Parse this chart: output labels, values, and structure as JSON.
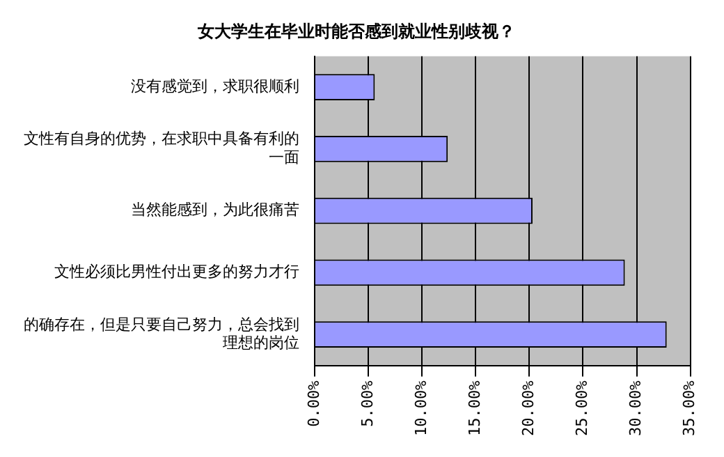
{
  "chart_data": {
    "type": "bar",
    "orientation": "horizontal",
    "title": "女大学生在毕业时能否感到就业性别歧视？",
    "categories": [
      "没有感觉到，求职很顺利",
      "文性有自身的优势，在求职中具备有利的一面",
      "当然能感到，为此很痛苦",
      "文性必须比男性付出更多的努力才行",
      "的确存在，但是只要自己努力，总会找到理想的岗位"
    ],
    "values": [
      5.6,
      12.4,
      20.3,
      28.9,
      32.8
    ],
    "color": "#9999ff",
    "xlim": [
      0,
      35
    ],
    "xticks": [
      {
        "value": 0,
        "label": "0.00%"
      },
      {
        "value": 5,
        "label": "5.00%"
      },
      {
        "value": 10,
        "label": "10.00%"
      },
      {
        "value": 15,
        "label": "15.00%"
      },
      {
        "value": 20,
        "label": "20.00%"
      },
      {
        "value": 25,
        "label": "25.00%"
      },
      {
        "value": 30,
        "label": "30.00%"
      },
      {
        "value": 35,
        "label": "35.00%"
      }
    ],
    "grid": "x"
  }
}
